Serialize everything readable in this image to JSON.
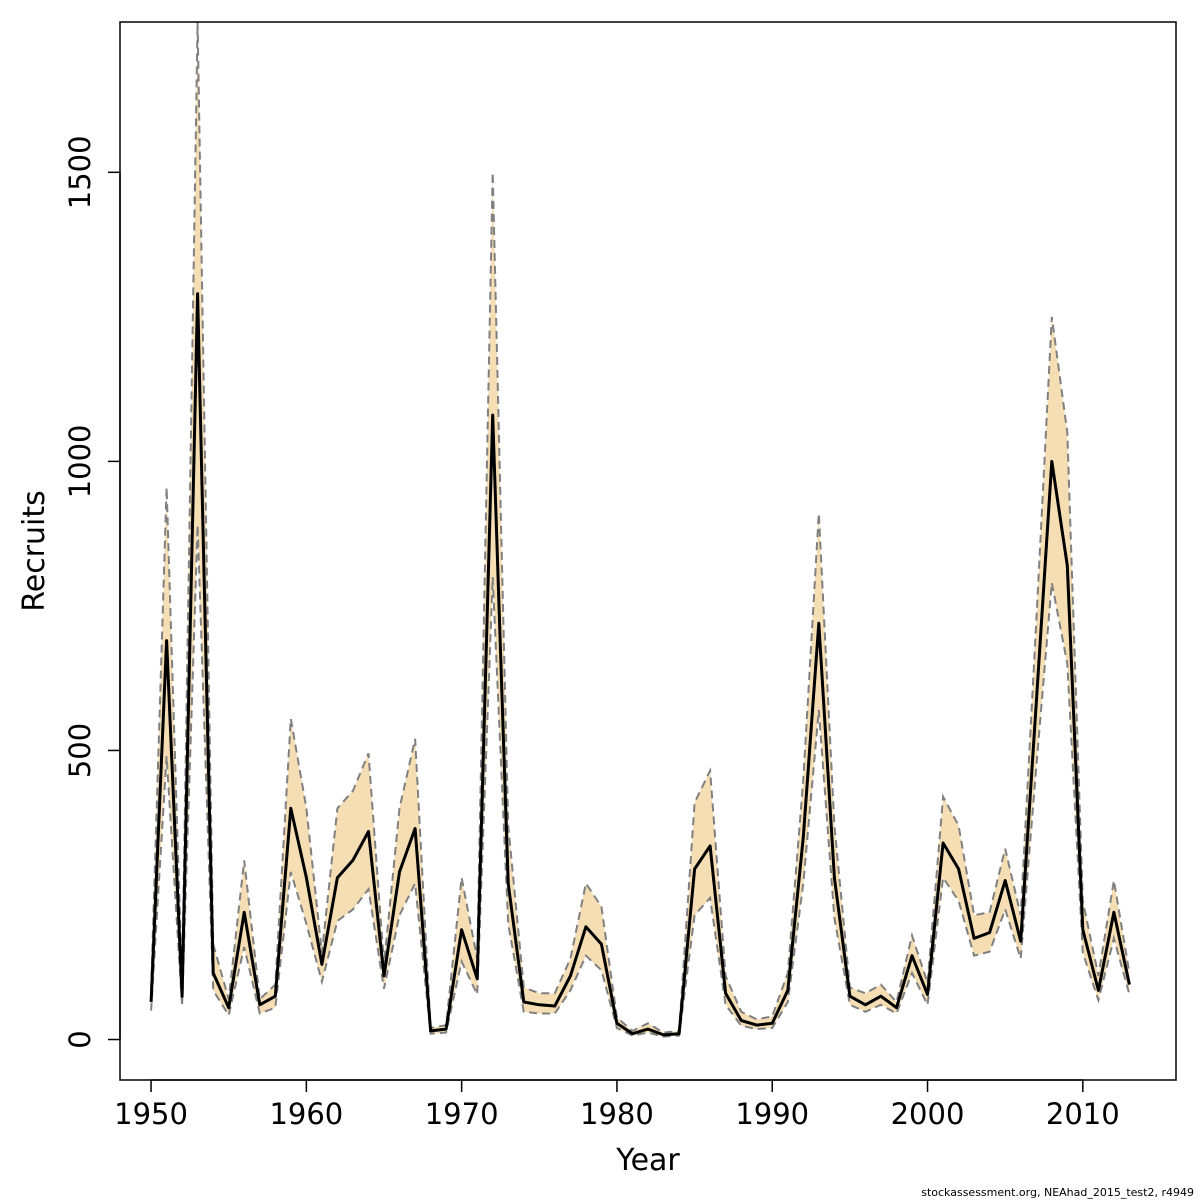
{
  "chart_data": {
    "type": "line",
    "xlabel": "Year",
    "ylabel": "Recruits",
    "xlim": [
      1948,
      2016
    ],
    "ylim": [
      -70,
      1760
    ],
    "x_ticks": [
      1950,
      1960,
      1970,
      1980,
      1990,
      2000,
      2010
    ],
    "y_ticks": [
      0,
      500,
      1000,
      1500
    ],
    "grid": false,
    "legend": "none",
    "band_color": "#F5DEB3",
    "line_color": "#000000",
    "bound_color": "#808080",
    "x": [
      1950,
      1951,
      1952,
      1953,
      1954,
      1955,
      1956,
      1957,
      1958,
      1959,
      1960,
      1961,
      1962,
      1963,
      1964,
      1965,
      1966,
      1967,
      1968,
      1969,
      1970,
      1971,
      1972,
      1973,
      1974,
      1975,
      1976,
      1977,
      1978,
      1979,
      1980,
      1981,
      1982,
      1983,
      1984,
      1985,
      1986,
      1987,
      1988,
      1989,
      1990,
      1991,
      1992,
      1993,
      1994,
      1995,
      1996,
      1997,
      1998,
      1999,
      2000,
      2001,
      2002,
      2003,
      2004,
      2005,
      2006,
      2007,
      2008,
      2009,
      2010,
      2011,
      2012,
      2013
    ],
    "series": [
      {
        "values": [
          65,
          690,
          75,
          1290,
          115,
          55,
          220,
          60,
          75,
          400,
          280,
          130,
          280,
          310,
          360,
          110,
          290,
          365,
          15,
          18,
          190,
          105,
          1080,
          270,
          65,
          60,
          58,
          110,
          195,
          165,
          28,
          10,
          18,
          8,
          10,
          295,
          335,
          80,
          33,
          25,
          28,
          85,
          350,
          720,
          280,
          75,
          60,
          75,
          55,
          145,
          78,
          340,
          295,
          175,
          185,
          275,
          170,
          580,
          1000,
          820,
          190,
          85,
          220,
          95
        ]
      },
      {
        "name": "upper",
        "values": [
          85,
          955,
          95,
          1770,
          165,
          70,
          310,
          70,
          95,
          555,
          400,
          150,
          400,
          430,
          495,
          130,
          400,
          520,
          20,
          25,
          280,
          140,
          1500,
          370,
          90,
          80,
          80,
          140,
          270,
          230,
          38,
          15,
          28,
          12,
          15,
          410,
          465,
          110,
          48,
          35,
          40,
          115,
          450,
          910,
          370,
          90,
          80,
          95,
          65,
          180,
          98,
          420,
          370,
          215,
          220,
          330,
          215,
          720,
          1250,
          1050,
          240,
          110,
          275,
          115
        ]
      },
      {
        "name": "lower",
        "values": [
          50,
          490,
          58,
          890,
          85,
          42,
          160,
          45,
          55,
          290,
          200,
          100,
          205,
          225,
          260,
          88,
          215,
          270,
          10,
          12,
          135,
          78,
          800,
          200,
          48,
          45,
          45,
          85,
          145,
          120,
          20,
          7,
          12,
          5,
          7,
          215,
          245,
          60,
          24,
          18,
          20,
          65,
          270,
          570,
          210,
          60,
          48,
          60,
          45,
          115,
          60,
          280,
          240,
          145,
          152,
          225,
          140,
          470,
          790,
          650,
          150,
          68,
          175,
          78
        ]
      }
    ]
  },
  "footer": {
    "credit": "stockassessment.org, NEAhad_2015_test2, r4949"
  }
}
